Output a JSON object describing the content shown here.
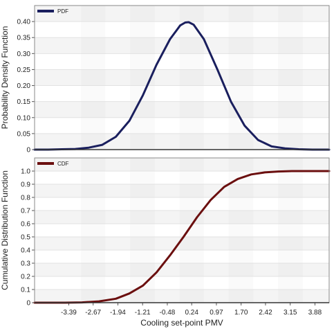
{
  "chart_data": [
    {
      "type": "line",
      "ylabel": "Probability Density Function",
      "xlabel": "",
      "ylim": [
        0,
        0.45
      ],
      "xlim": [
        -4.4,
        4.3
      ],
      "yticks": [
        "0",
        "0.05",
        "0.10",
        "0.15",
        "0.20",
        "0.25",
        "0.30",
        "0.35",
        "0.40"
      ],
      "legend_position": "top-left",
      "grid": true,
      "series": [
        {
          "name": "PDF",
          "color": "#1a1f5e",
          "x": [
            -4.4,
            -4.0,
            -3.6,
            -3.2,
            -2.8,
            -2.4,
            -2.0,
            -1.6,
            -1.2,
            -0.8,
            -0.4,
            -0.1,
            0.05,
            0.15,
            0.3,
            0.6,
            1.0,
            1.4,
            1.8,
            2.2,
            2.6,
            3.0,
            3.4,
            3.8,
            4.3
          ],
          "y": [
            0.0,
            0.0,
            0.001,
            0.002,
            0.006,
            0.015,
            0.04,
            0.09,
            0.17,
            0.265,
            0.345,
            0.388,
            0.397,
            0.398,
            0.39,
            0.345,
            0.25,
            0.15,
            0.075,
            0.03,
            0.01,
            0.004,
            0.001,
            0.0,
            0.0
          ]
        }
      ]
    },
    {
      "type": "line",
      "ylabel": "Cumulative Distribution Function",
      "xlabel": "Cooling set-point PMV",
      "ylim": [
        0,
        1.1
      ],
      "xlim": [
        -4.4,
        4.3
      ],
      "yticks": [
        "0",
        "0.1",
        "0.2",
        "0.3",
        "0.4",
        "0.5",
        "0.6",
        "0.7",
        "0.8",
        "0.9",
        "1.0"
      ],
      "xticks": [
        "-3.39",
        "-2.67",
        "-1.94",
        "-1.21",
        "-0.48",
        "0.24",
        "0.97",
        "1.70",
        "2.42",
        "3.15",
        "3.88"
      ],
      "legend_position": "top-left",
      "grid": true,
      "series": [
        {
          "name": "CDF",
          "color": "#6b0f0f",
          "x": [
            -4.4,
            -3.5,
            -3.0,
            -2.5,
            -2.0,
            -1.6,
            -1.2,
            -0.8,
            -0.4,
            0.0,
            0.4,
            0.8,
            1.2,
            1.6,
            2.0,
            2.4,
            2.8,
            3.2,
            4.3
          ],
          "y": [
            0.0,
            0.0,
            0.002,
            0.01,
            0.03,
            0.07,
            0.13,
            0.23,
            0.36,
            0.5,
            0.65,
            0.78,
            0.88,
            0.94,
            0.975,
            0.99,
            0.997,
            1.0,
            1.0
          ]
        }
      ]
    }
  ]
}
